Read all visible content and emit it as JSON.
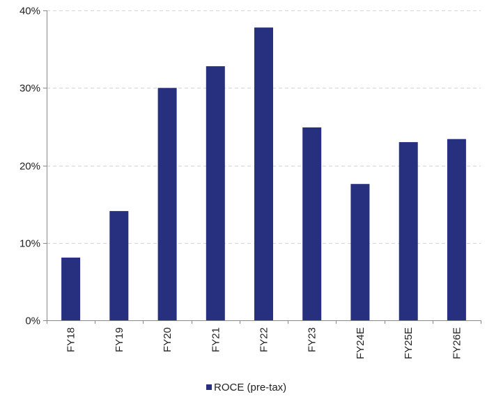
{
  "chart_data": {
    "type": "bar",
    "title": "",
    "xlabel": "",
    "ylabel": "",
    "categories": [
      "FY18",
      "FY19",
      "FY20",
      "FY21",
      "FY22",
      "FY23",
      "FY24E",
      "FY25E",
      "FY26E"
    ],
    "series": [
      {
        "name": "ROCE (pre-tax)",
        "values": [
          8.1,
          14.1,
          30.0,
          32.8,
          37.8,
          24.9,
          17.6,
          23.0,
          23.4
        ],
        "color": "#26307e"
      }
    ],
    "ylim": [
      0,
      40
    ],
    "yticks": [
      0,
      10,
      20,
      30,
      40
    ],
    "ytick_labels": [
      "0%",
      "10%",
      "20%",
      "30%",
      "40%"
    ],
    "grid": true,
    "grid_style": "dashed",
    "x_tick_rotation": "vertical",
    "legend_position": "bottom-center"
  }
}
